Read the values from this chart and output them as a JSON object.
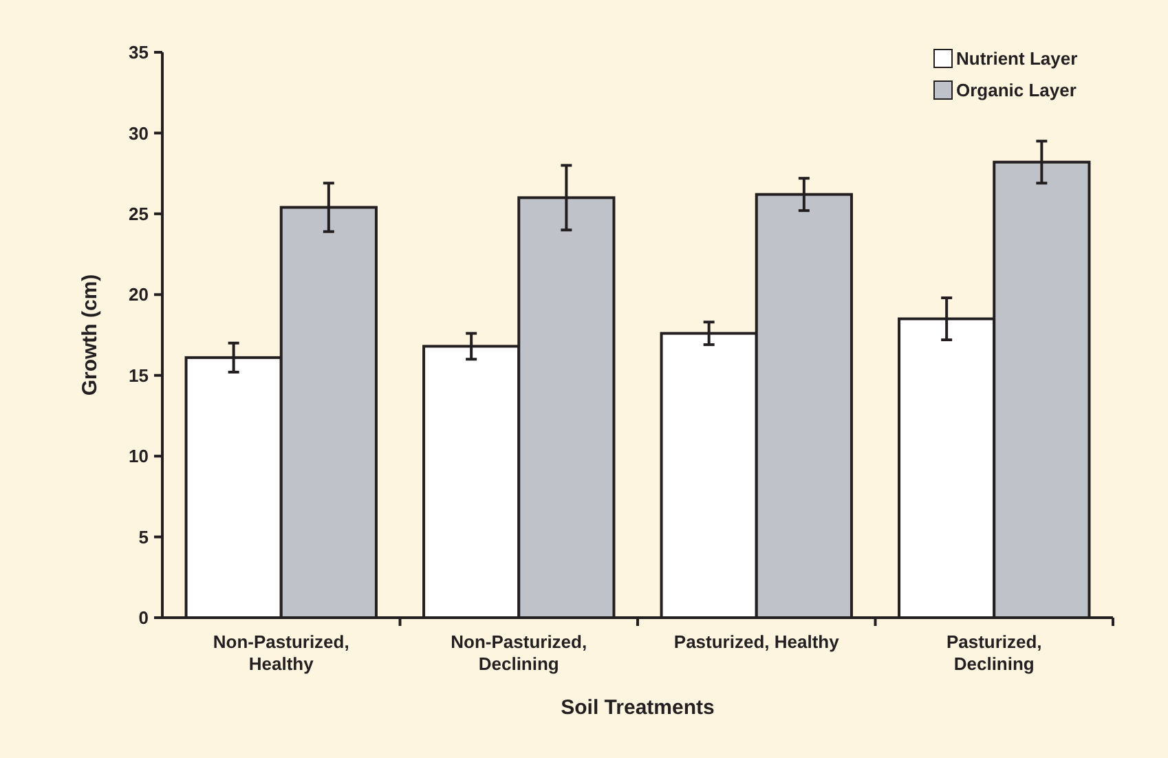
{
  "chart_data": {
    "type": "bar",
    "xlabel": "Soil Treatments",
    "ylabel": "Growth (cm)",
    "categories": [
      "Non-Pasturized, Healthy",
      "Non-Pasturized, Declining",
      "Pasturized, Healthy",
      "Pasturized, Declining"
    ],
    "series": [
      {
        "name": "Nutrient Layer",
        "color": "#ffffff",
        "values": [
          16.1,
          16.8,
          17.6,
          18.5
        ],
        "errors": [
          0.9,
          0.8,
          0.7,
          1.3
        ]
      },
      {
        "name": "Organic Layer",
        "color": "#c0c2c9",
        "values": [
          25.4,
          26.0,
          26.2,
          28.2
        ],
        "errors": [
          1.5,
          2.0,
          1.0,
          1.3
        ]
      }
    ],
    "ylim": [
      0,
      35
    ],
    "yticks": [
      0,
      5,
      10,
      15,
      20,
      25,
      30,
      35
    ],
    "grid": false,
    "legend": "top right"
  }
}
